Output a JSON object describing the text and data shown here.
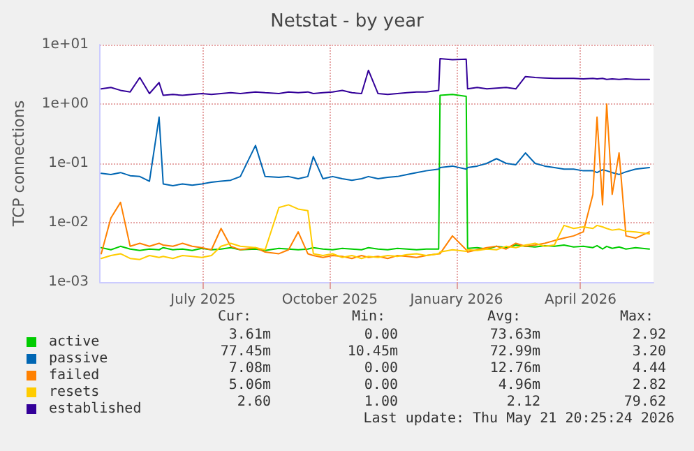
{
  "chart_data": {
    "type": "line",
    "title": "Netstat - by year",
    "ylabel": "TCP connections",
    "x": [
      "2025-04-18",
      "2025-04-25",
      "2025-05-02",
      "2025-05-09",
      "2025-05-16",
      "2025-05-23",
      "2025-05-30",
      "2025-06-02",
      "2025-06-09",
      "2025-06-16",
      "2025-06-23",
      "2025-06-30",
      "2025-07-07",
      "2025-07-14",
      "2025-07-21",
      "2025-07-28",
      "2025-08-08",
      "2025-08-15",
      "2025-08-25",
      "2025-09-01",
      "2025-09-08",
      "2025-09-15",
      "2025-09-19",
      "2025-09-26",
      "2025-10-03",
      "2025-10-10",
      "2025-10-17",
      "2025-10-24",
      "2025-10-29",
      "2025-11-05",
      "2025-11-12",
      "2025-11-19",
      "2025-11-26",
      "2025-12-03",
      "2025-12-10",
      "2025-12-19",
      "2025-12-20",
      "2025-12-29",
      "2026-01-08",
      "2026-01-09",
      "2026-01-16",
      "2026-01-23",
      "2026-01-30",
      "2026-02-06",
      "2026-02-13",
      "2026-02-20",
      "2026-02-27",
      "2026-03-06",
      "2026-03-13",
      "2026-03-20",
      "2026-03-27",
      "2026-04-03",
      "2026-04-10",
      "2026-04-13",
      "2026-04-17",
      "2026-04-20",
      "2026-04-24",
      "2026-04-29",
      "2026-05-04",
      "2026-05-11",
      "2026-05-21"
    ],
    "series": [
      {
        "name": "active",
        "color": "#00cc00",
        "values": [
          0.0038,
          0.0035,
          0.004,
          0.0036,
          0.0034,
          0.0036,
          0.0035,
          0.0038,
          0.0035,
          0.0036,
          0.0034,
          0.0037,
          0.0035,
          0.0036,
          0.0038,
          0.0035,
          0.0036,
          0.0034,
          0.0037,
          0.0036,
          0.0035,
          0.0036,
          0.0038,
          0.0036,
          0.0035,
          0.0037,
          0.0036,
          0.0035,
          0.0038,
          0.0036,
          0.0035,
          0.0037,
          0.0036,
          0.0035,
          0.0036,
          0.0036,
          1.4,
          1.45,
          1.35,
          0.0037,
          0.0038,
          0.0036,
          0.004,
          0.0038,
          0.0042,
          0.004,
          0.0039,
          0.0041,
          0.004,
          0.0042,
          0.0039,
          0.004,
          0.0038,
          0.0041,
          0.0036,
          0.004,
          0.0037,
          0.0039,
          0.0036,
          0.0038,
          0.0036
        ]
      },
      {
        "name": "passive",
        "color": "#0066b3",
        "values": [
          0.068,
          0.065,
          0.07,
          0.062,
          0.06,
          0.05,
          0.6,
          0.045,
          0.042,
          0.045,
          0.043,
          0.045,
          0.048,
          0.05,
          0.052,
          0.06,
          0.2,
          0.06,
          0.058,
          0.06,
          0.055,
          0.06,
          0.13,
          0.055,
          0.06,
          0.055,
          0.052,
          0.055,
          0.06,
          0.055,
          0.058,
          0.06,
          0.065,
          0.07,
          0.075,
          0.08,
          0.085,
          0.09,
          0.08,
          0.085,
          0.09,
          0.1,
          0.12,
          0.1,
          0.095,
          0.15,
          0.1,
          0.09,
          0.085,
          0.08,
          0.08,
          0.075,
          0.075,
          0.07,
          0.078,
          0.075,
          0.07,
          0.065,
          0.072,
          0.08,
          0.085
        ]
      },
      {
        "name": "failed",
        "color": "#ff8000",
        "values": [
          0.003,
          0.012,
          0.022,
          0.004,
          0.0045,
          0.004,
          0.0045,
          0.0042,
          0.004,
          0.0045,
          0.004,
          0.0038,
          0.0035,
          0.008,
          0.004,
          0.0035,
          0.0038,
          0.0032,
          0.003,
          0.0035,
          0.007,
          0.003,
          0.0028,
          0.0026,
          0.0028,
          0.0027,
          0.0025,
          0.0028,
          0.0026,
          0.0027,
          0.0025,
          0.0028,
          0.0027,
          0.0026,
          0.0028,
          0.003,
          0.003,
          0.006,
          0.0035,
          0.0032,
          0.0035,
          0.0038,
          0.004,
          0.0036,
          0.0045,
          0.004,
          0.0042,
          0.0045,
          0.005,
          0.0055,
          0.006,
          0.007,
          0.03,
          0.6,
          0.02,
          1.0,
          0.03,
          0.15,
          0.006,
          0.0055,
          0.007
        ]
      },
      {
        "name": "resets",
        "color": "#ffcc00",
        "values": [
          0.0025,
          0.0028,
          0.003,
          0.0025,
          0.0024,
          0.0028,
          0.0026,
          0.0027,
          0.0025,
          0.0028,
          0.0027,
          0.0026,
          0.0028,
          0.004,
          0.0045,
          0.004,
          0.0038,
          0.0035,
          0.018,
          0.02,
          0.017,
          0.016,
          0.003,
          0.0028,
          0.003,
          0.0026,
          0.0028,
          0.0025,
          0.0027,
          0.0026,
          0.0028,
          0.0027,
          0.0029,
          0.003,
          0.0028,
          0.003,
          0.0032,
          0.0035,
          0.0033,
          0.0035,
          0.0034,
          0.0036,
          0.0035,
          0.004,
          0.0038,
          0.0042,
          0.0045,
          0.004,
          0.0042,
          0.009,
          0.008,
          0.0085,
          0.008,
          0.009,
          0.0085,
          0.008,
          0.0075,
          0.0078,
          0.0072,
          0.007,
          0.0065
        ]
      },
      {
        "name": "established",
        "color": "#330099",
        "values": [
          1.8,
          1.9,
          1.7,
          1.6,
          2.8,
          1.5,
          2.3,
          1.4,
          1.45,
          1.4,
          1.45,
          1.5,
          1.45,
          1.5,
          1.55,
          1.5,
          1.6,
          1.55,
          1.5,
          1.6,
          1.55,
          1.6,
          1.5,
          1.55,
          1.6,
          1.7,
          1.55,
          1.5,
          3.7,
          1.5,
          1.45,
          1.5,
          1.55,
          1.6,
          1.6,
          1.7,
          5.8,
          5.6,
          5.7,
          1.8,
          1.9,
          1.8,
          1.85,
          1.9,
          1.8,
          2.9,
          2.8,
          2.75,
          2.7,
          2.7,
          2.7,
          2.65,
          2.7,
          2.65,
          2.7,
          2.6,
          2.65,
          2.6,
          2.65,
          2.6,
          2.6
        ]
      }
    ],
    "xlim": [
      "2025-04-17",
      "2026-05-24"
    ],
    "xticks": [
      {
        "value": "2025-07-01",
        "label": "July 2025"
      },
      {
        "value": "2025-10-01",
        "label": "October 2025"
      },
      {
        "value": "2026-01-01",
        "label": "January 2026"
      },
      {
        "value": "2026-04-01",
        "label": "April 2026"
      }
    ],
    "ylim": [
      0.001,
      10
    ],
    "yticks": [
      {
        "value": 0.001,
        "label": "1e-03"
      },
      {
        "value": 0.01,
        "label": "1e-02"
      },
      {
        "value": 0.1,
        "label": "1e-01"
      },
      {
        "value": 1,
        "label": "1e+00"
      },
      {
        "value": 10,
        "label": "1e+01"
      }
    ],
    "log": true,
    "grid": true,
    "legend": "bottom left",
    "marker": "none",
    "line_style": "solid",
    "annotations": [
      "Cur:",
      "Min:",
      "Avg:",
      "Max:",
      "3.61m",
      "0.00",
      "73.63m",
      "2.92",
      "77.45m",
      "10.45m",
      "72.99m",
      "3.20",
      "7.08m",
      "0.00",
      "12.76m",
      "4.44",
      "5.06m",
      "0.00",
      "4.96m",
      "2.82",
      "2.60",
      "1.00",
      "2.12",
      "79.62",
      "Last update: Thu May 21 20:25:24 2026"
    ]
  }
}
